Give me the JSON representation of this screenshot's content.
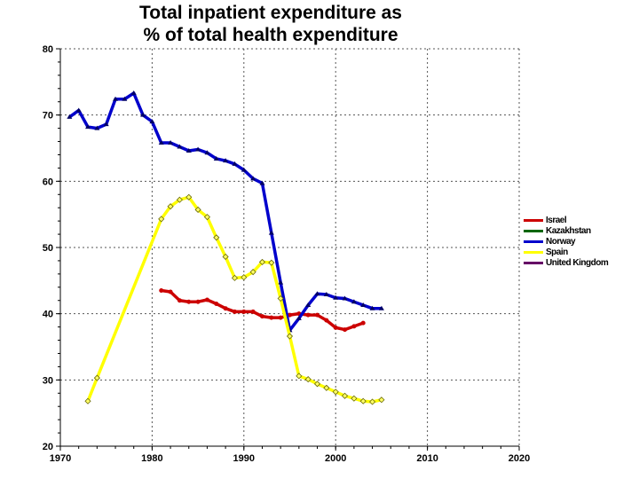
{
  "chart_data": {
    "type": "line",
    "title": "Total inpatient expenditure as\n% of total health expenditure",
    "title_lines": [
      "Total inpatient expenditure as",
      "% of total health expenditure"
    ],
    "xlim": [
      1970,
      2020
    ],
    "ylim": [
      20,
      80
    ],
    "xticks": [
      1970,
      1980,
      1990,
      2000,
      2010,
      2020
    ],
    "yticks": [
      20,
      30,
      40,
      50,
      60,
      70,
      80
    ],
    "grid": true,
    "legend_placement": "right",
    "series": [
      {
        "name": "Israel",
        "color": "#cc0000",
        "marker": "circle",
        "x": [
          1981,
          1982,
          1983,
          1984,
          1985,
          1986,
          1987,
          1988,
          1989,
          1990,
          1991,
          1992,
          1993,
          1994,
          1995,
          1996,
          1997,
          1998,
          1999,
          2000,
          2001,
          2002,
          2003
        ],
        "y": [
          43.5,
          43.3,
          42.0,
          41.8,
          41.8,
          42.1,
          41.5,
          40.8,
          40.3,
          40.3,
          40.3,
          39.6,
          39.4,
          39.4,
          39.8,
          40.0,
          39.8,
          39.8,
          39.0,
          37.9,
          37.6,
          38.1,
          38.6
        ]
      },
      {
        "name": "Kazakhstan",
        "color": "#006600",
        "marker": "triangle-down",
        "x": [],
        "y": []
      },
      {
        "name": "Norway",
        "color": "#0000cc",
        "marker": "triangle",
        "x": [
          1971,
          1972,
          1973,
          1974,
          1975,
          1976,
          1977,
          1978,
          1979,
          1980,
          1981,
          1982,
          1983,
          1984,
          1985,
          1986,
          1987,
          1988,
          1989,
          1990,
          1991,
          1992,
          1993,
          1994,
          1995,
          1996,
          1997,
          1998,
          1999,
          2000,
          2001,
          2002,
          2003,
          2004,
          2005
        ],
        "y": [
          69.7,
          70.7,
          68.2,
          68.0,
          68.6,
          72.4,
          72.4,
          73.3,
          70.0,
          69.0,
          65.8,
          65.8,
          65.2,
          64.6,
          64.8,
          64.3,
          63.4,
          63.1,
          62.6,
          61.7,
          60.4,
          59.7,
          52.2,
          44.7,
          37.5,
          39.3,
          41.3,
          43.0,
          42.9,
          42.4,
          42.3,
          41.8,
          41.3,
          40.8,
          40.8
        ]
      },
      {
        "name": "Spain",
        "color": "#ffff00",
        "marker": "diamond",
        "x": [
          1973,
          1974,
          1981,
          1982,
          1983,
          1984,
          1985,
          1986,
          1987,
          1988,
          1989,
          1990,
          1991,
          1992,
          1993,
          1994,
          1995,
          1996,
          1997,
          1998,
          1999,
          2000,
          2001,
          2002,
          2003,
          2004,
          2005
        ],
        "y": [
          26.8,
          30.3,
          54.3,
          56.2,
          57.2,
          57.6,
          55.7,
          54.6,
          51.5,
          48.6,
          45.4,
          45.5,
          46.3,
          47.8,
          47.7,
          42.3,
          36.6,
          30.6,
          30.1,
          29.4,
          28.8,
          28.2,
          27.6,
          27.2,
          26.8,
          26.7,
          27.0
        ]
      },
      {
        "name": "United Kingdom",
        "color": "#660066",
        "marker": "square",
        "x": [],
        "y": []
      }
    ]
  }
}
